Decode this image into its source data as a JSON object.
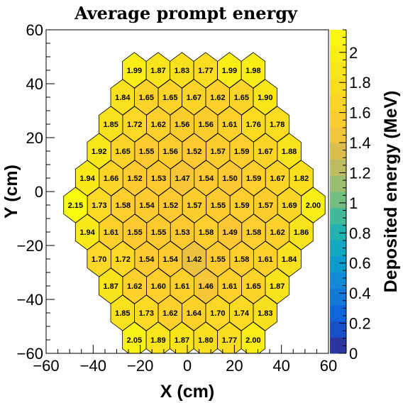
{
  "chart_data": {
    "type": "heatmap",
    "title": "Average prompt energy",
    "xlabel": "X (cm)",
    "ylabel": "Y (cm)",
    "zlabel": "Deposited energy (MeV)",
    "xlim": [
      -60,
      60
    ],
    "ylim": [
      -60,
      60
    ],
    "zlim": [
      0,
      2.15
    ],
    "x_ticks": [
      -60,
      -40,
      -20,
      0,
      20,
      40,
      60
    ],
    "x_tick_labels": [
      "−60",
      "−40",
      "−20",
      "0",
      "20",
      "40",
      "60"
    ],
    "y_ticks": [
      -60,
      -40,
      -20,
      0,
      20,
      40,
      60
    ],
    "y_tick_labels": [
      "−60",
      "−40",
      "−20",
      "0",
      "20",
      "40",
      "60"
    ],
    "z_ticks": [
      0,
      0.2,
      0.4,
      0.6,
      0.8,
      1,
      1.2,
      1.4,
      1.6,
      1.8,
      2
    ],
    "z_tick_labels": [
      "0",
      "0.2",
      "0.4",
      "0.6",
      "0.8",
      "1",
      "1.2",
      "1.4",
      "1.6",
      "1.8",
      "2"
    ],
    "grid": false,
    "hex_spacing_x_cm": 10.1,
    "hex_spacing_y_cm": 9.9,
    "rows": [
      {
        "y": 45,
        "x_start": -22.5,
        "values": [
          "1.99",
          "1.87",
          "1.83",
          "1.77",
          "1.99",
          "1.98"
        ]
      },
      {
        "y": 35,
        "x_start": -27.5,
        "values": [
          "1.84",
          "1.65",
          "1.65",
          "1.67",
          "1.62",
          "1.65",
          "1.90"
        ]
      },
      {
        "y": 25,
        "x_start": -32.5,
        "values": [
          "1.85",
          "1.72",
          "1.62",
          "1.56",
          "1.56",
          "1.61",
          "1.76",
          "1.78"
        ]
      },
      {
        "y": 15,
        "x_start": -37.5,
        "values": [
          "1.92",
          "1.65",
          "1.55",
          "1.56",
          "1.52",
          "1.57",
          "1.59",
          "1.67",
          "1.88"
        ]
      },
      {
        "y": 5,
        "x_start": -42.5,
        "values": [
          "1.94",
          "1.66",
          "1.52",
          "1.53",
          "1.47",
          "1.54",
          "1.50",
          "1.59",
          "1.67",
          "1.82"
        ]
      },
      {
        "y": -5,
        "x_start": -47.5,
        "values": [
          "2.15",
          "1.73",
          "1.58",
          "1.54",
          "1.52",
          "1.57",
          "1.55",
          "1.59",
          "1.57",
          "1.69",
          "2.00"
        ]
      },
      {
        "y": -15,
        "x_start": -42.5,
        "values": [
          "1.94",
          "1.61",
          "1.55",
          "1.55",
          "1.53",
          "1.58",
          "1.49",
          "1.58",
          "1.62",
          "1.86"
        ]
      },
      {
        "y": -25,
        "x_start": -37.5,
        "values": [
          "1.70",
          "1.72",
          "1.54",
          "1.54",
          "1.42",
          "1.55",
          "1.58",
          "1.61",
          "1.84"
        ]
      },
      {
        "y": -35,
        "x_start": -32.5,
        "values": [
          "1.87",
          "1.62",
          "1.60",
          "1.61",
          "1.46",
          "1.61",
          "1.65",
          "1.87"
        ]
      },
      {
        "y": -45,
        "x_start": -27.5,
        "values": [
          "1.85",
          "1.73",
          "1.62",
          "1.64",
          "1.70",
          "1.74",
          "1.83"
        ]
      },
      {
        "y": -55,
        "x_start": -22.5,
        "values": [
          "2.05",
          "1.89",
          "1.87",
          "1.80",
          "1.77",
          "2.00"
        ]
      }
    ]
  }
}
